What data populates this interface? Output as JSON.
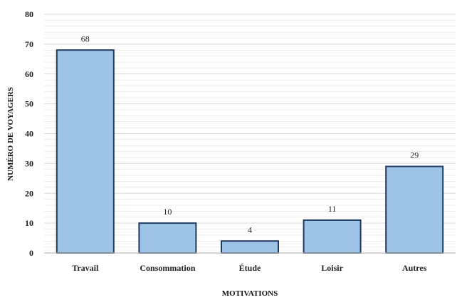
{
  "chart_data": {
    "type": "bar",
    "categories": [
      "Travail",
      "Consommation",
      "Étude",
      "Loisir",
      "Autres"
    ],
    "values": [
      68,
      10,
      4,
      11,
      29
    ],
    "data_labels": [
      "68",
      "10",
      "4",
      "11",
      "29"
    ],
    "y_ticks": [
      "0",
      "10",
      "20",
      "30",
      "40",
      "50",
      "60",
      "70",
      "80"
    ],
    "xlabel": "MOTIVATIONS",
    "ylabel": "NUMÉRO DE VOYAGERS",
    "ylim": [
      0,
      80
    ],
    "minor_step": 2,
    "grid": true,
    "legend": "none",
    "colors": {
      "bar_fill": "#9dc3e6",
      "bar_stroke": "#1f3a5f",
      "grid": "#d9d9d9",
      "axis": "#bfbfbf"
    }
  }
}
